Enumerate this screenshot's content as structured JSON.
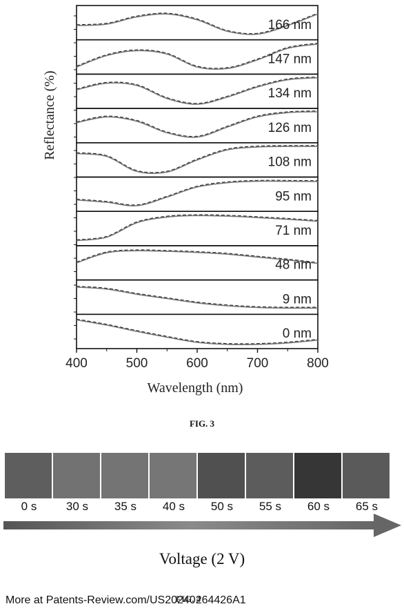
{
  "chart_data": {
    "type": "line",
    "xlabel": "Wavelength (nm)",
    "ylabel": "Reflectance (%)",
    "xlim": [
      400,
      800
    ],
    "xticks": [
      "400",
      "500",
      "600",
      "700",
      "800"
    ],
    "panels": [
      {
        "label": "166 nm",
        "x": [
          400,
          450,
          500,
          550,
          600,
          650,
          700,
          750,
          800
        ],
        "y": [
          0.4,
          0.45,
          0.7,
          0.8,
          0.6,
          0.2,
          0.1,
          0.4,
          0.8
        ]
      },
      {
        "label": "147 nm",
        "x": [
          400,
          450,
          500,
          550,
          600,
          650,
          700,
          750,
          800
        ],
        "y": [
          0.15,
          0.55,
          0.72,
          0.6,
          0.15,
          0.1,
          0.4,
          0.8,
          0.95
        ]
      },
      {
        "label": "134 nm",
        "x": [
          400,
          450,
          500,
          550,
          600,
          650,
          700,
          750,
          800
        ],
        "y": [
          0.55,
          0.78,
          0.7,
          0.25,
          0.05,
          0.3,
          0.65,
          0.9,
          0.97
        ]
      },
      {
        "label": "126 nm",
        "x": [
          400,
          450,
          500,
          550,
          600,
          650,
          700,
          750,
          800
        ],
        "y": [
          0.6,
          0.8,
          0.65,
          0.25,
          0.1,
          0.45,
          0.8,
          0.95,
          0.98
        ]
      },
      {
        "label": "108 nm",
        "x": [
          400,
          450,
          500,
          550,
          600,
          650,
          700,
          750,
          800
        ],
        "y": [
          0.72,
          0.62,
          0.1,
          0.08,
          0.5,
          0.85,
          0.95,
          0.97,
          0.97
        ]
      },
      {
        "label": "95 nm",
        "x": [
          400,
          450,
          500,
          550,
          600,
          650,
          700,
          750,
          800
        ],
        "y": [
          0.3,
          0.22,
          0.1,
          0.4,
          0.75,
          0.9,
          0.95,
          0.95,
          0.94
        ]
      },
      {
        "label": "71 nm",
        "x": [
          400,
          450,
          500,
          550,
          600,
          650,
          700,
          750,
          800
        ],
        "y": [
          0.08,
          0.2,
          0.7,
          0.9,
          0.95,
          0.93,
          0.88,
          0.82,
          0.75
        ]
      },
      {
        "label": "48 nm",
        "x": [
          400,
          450,
          500,
          550,
          600,
          650,
          700,
          750,
          800
        ],
        "y": [
          0.5,
          0.85,
          0.92,
          0.9,
          0.86,
          0.8,
          0.7,
          0.6,
          0.48
        ]
      },
      {
        "label": "9 nm",
        "x": [
          400,
          450,
          500,
          550,
          600,
          650,
          700,
          750,
          800
        ],
        "y": [
          0.85,
          0.78,
          0.6,
          0.45,
          0.3,
          0.2,
          0.14,
          0.12,
          0.12
        ]
      },
      {
        "label": "0 nm",
        "x": [
          400,
          450,
          500,
          550,
          600,
          650,
          700,
          750,
          800
        ],
        "y": [
          0.9,
          0.72,
          0.5,
          0.3,
          0.12,
          0.05,
          0.05,
          0.1,
          0.2
        ]
      }
    ]
  },
  "fig3_caption": "FIG. 3",
  "swatches": [
    {
      "time": "0 s",
      "color": "#5e5e5e"
    },
    {
      "time": "30 s",
      "color": "#727272"
    },
    {
      "time": "35 s",
      "color": "#747474"
    },
    {
      "time": "40 s",
      "color": "#767676"
    },
    {
      "time": "50 s",
      "color": "#505050"
    },
    {
      "time": "55 s",
      "color": "#5c5c5c"
    },
    {
      "time": "60 s",
      "color": "#363636"
    },
    {
      "time": "65 s",
      "color": "#5a5a5a"
    }
  ],
  "voltage_label": "Voltage (2 V)",
  "fig4_caption": "FIG. 4",
  "footer": "More at Patents-Review.com/US20240264426A1"
}
